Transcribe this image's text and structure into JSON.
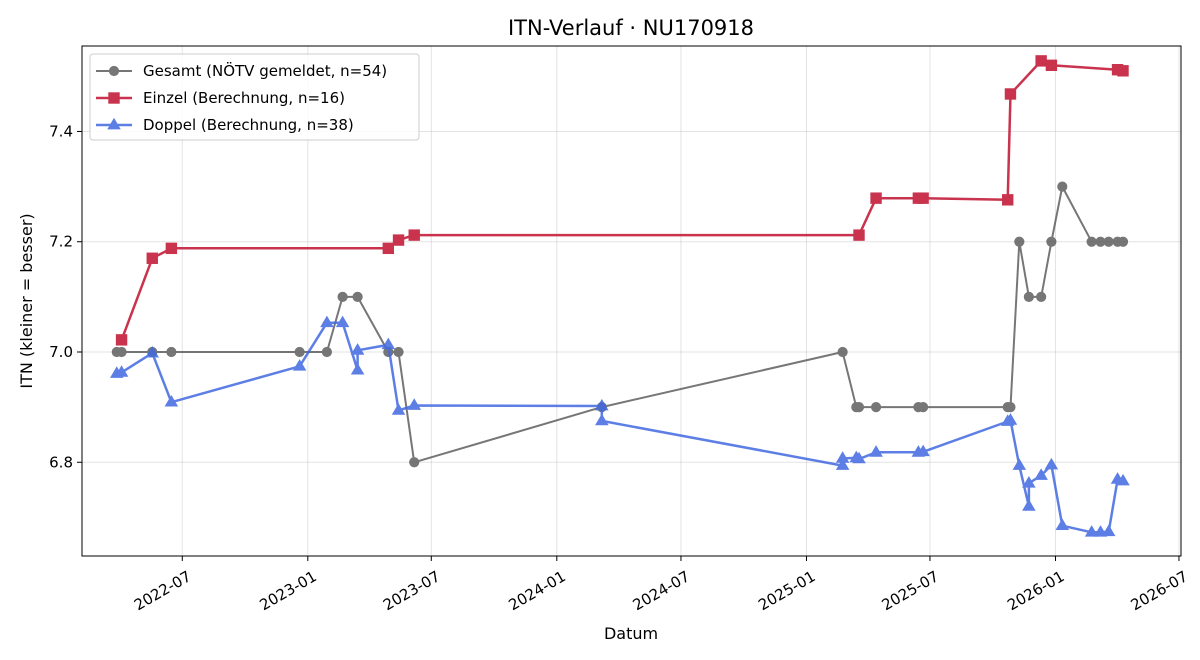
{
  "chart_data": {
    "type": "line",
    "title": "ITN-Verlauf · NU170918",
    "xlabel": "Datum",
    "ylabel": "ITN  (kleiner = besser)",
    "xlim": [
      "2022-02-04",
      "2026-07-04"
    ],
    "ylim": [
      6.63,
      7.555
    ],
    "x_ticks": [
      "2022-07",
      "2023-01",
      "2023-07",
      "2024-01",
      "2024-07",
      "2025-01",
      "2025-07",
      "2026-01",
      "2026-07"
    ],
    "y_ticks": [
      "6.8",
      "7.0",
      "7.2",
      "7.4"
    ],
    "grid": true,
    "legend_position": "top-left",
    "series": [
      {
        "name": "Gesamt (NÖTV gemeldet, n=54)",
        "color": "#555555",
        "marker": "circle",
        "points": [
          {
            "x": "2022-03-27",
            "y": 7.0
          },
          {
            "x": "2022-04-03",
            "y": 7.0
          },
          {
            "x": "2022-05-18",
            "y": 7.0
          },
          {
            "x": "2022-06-15",
            "y": 7.0
          },
          {
            "x": "2022-12-20",
            "y": 7.0
          },
          {
            "x": "2023-01-29",
            "y": 7.0
          },
          {
            "x": "2023-02-21",
            "y": 7.1
          },
          {
            "x": "2023-03-15",
            "y": 7.1
          },
          {
            "x": "2023-04-29",
            "y": 7.0
          },
          {
            "x": "2023-05-14",
            "y": 7.0
          },
          {
            "x": "2023-06-06",
            "y": 6.8
          },
          {
            "x": "2024-03-07",
            "y": 6.9
          },
          {
            "x": "2025-02-23",
            "y": 7.0
          },
          {
            "x": "2025-03-15",
            "y": 6.9
          },
          {
            "x": "2025-03-19",
            "y": 6.9
          },
          {
            "x": "2025-04-13",
            "y": 6.9
          },
          {
            "x": "2025-06-14",
            "y": 6.9
          },
          {
            "x": "2025-06-21",
            "y": 6.9
          },
          {
            "x": "2025-10-23",
            "y": 6.9
          },
          {
            "x": "2025-10-27",
            "y": 6.9
          },
          {
            "x": "2025-11-09",
            "y": 7.2
          },
          {
            "x": "2025-11-23",
            "y": 7.1
          },
          {
            "x": "2025-12-11",
            "y": 7.1
          },
          {
            "x": "2025-12-26",
            "y": 7.2
          },
          {
            "x": "2026-01-11",
            "y": 7.3
          },
          {
            "x": "2026-02-23",
            "y": 7.2
          },
          {
            "x": "2026-03-08",
            "y": 7.2
          },
          {
            "x": "2026-03-20",
            "y": 7.2
          },
          {
            "x": "2026-04-02",
            "y": 7.2
          },
          {
            "x": "2026-04-10",
            "y": 7.2
          }
        ]
      },
      {
        "name": "Einzel (Berechnung, n=16)",
        "color": "#c41e3a",
        "marker": "square",
        "points": [
          {
            "x": "2022-04-03",
            "y": 7.022
          },
          {
            "x": "2022-05-18",
            "y": 7.17
          },
          {
            "x": "2022-06-15",
            "y": 7.188
          },
          {
            "x": "2023-04-29",
            "y": 7.188
          },
          {
            "x": "2023-05-14",
            "y": 7.203
          },
          {
            "x": "2023-06-06",
            "y": 7.212
          },
          {
            "x": "2025-03-19",
            "y": 7.212
          },
          {
            "x": "2025-04-13",
            "y": 7.279
          },
          {
            "x": "2025-06-14",
            "y": 7.279
          },
          {
            "x": "2025-06-21",
            "y": 7.279
          },
          {
            "x": "2025-10-23",
            "y": 7.276
          },
          {
            "x": "2025-10-27",
            "y": 7.468
          },
          {
            "x": "2025-12-11",
            "y": 7.528
          },
          {
            "x": "2025-12-26",
            "y": 7.52
          },
          {
            "x": "2026-04-02",
            "y": 7.512
          },
          {
            "x": "2026-04-10",
            "y": 7.51
          }
        ]
      },
      {
        "name": "Doppel (Berechnung, n=38)",
        "color": "#4169e1",
        "marker": "triangle",
        "points": [
          {
            "x": "2022-03-27",
            "y": 6.961
          },
          {
            "x": "2022-04-03",
            "y": 6.963
          },
          {
            "x": "2022-05-18",
            "y": 6.998
          },
          {
            "x": "2022-06-15",
            "y": 6.909
          },
          {
            "x": "2022-12-20",
            "y": 6.974
          },
          {
            "x": "2023-01-29",
            "y": 7.053
          },
          {
            "x": "2023-02-21",
            "y": 7.053
          },
          {
            "x": "2023-03-15",
            "y": 6.967
          },
          {
            "x": "2023-03-15",
            "y": 7.003
          },
          {
            "x": "2023-04-29",
            "y": 7.013
          },
          {
            "x": "2023-05-14",
            "y": 6.894
          },
          {
            "x": "2023-06-06",
            "y": 6.903
          },
          {
            "x": "2024-03-07",
            "y": 6.902
          },
          {
            "x": "2024-03-07",
            "y": 6.875
          },
          {
            "x": "2025-02-23",
            "y": 6.794
          },
          {
            "x": "2025-02-23",
            "y": 6.807
          },
          {
            "x": "2025-03-15",
            "y": 6.808
          },
          {
            "x": "2025-03-19",
            "y": 6.806
          },
          {
            "x": "2025-04-13",
            "y": 6.818
          },
          {
            "x": "2025-06-14",
            "y": 6.818
          },
          {
            "x": "2025-06-21",
            "y": 6.819
          },
          {
            "x": "2025-10-23",
            "y": 6.874
          },
          {
            "x": "2025-10-27",
            "y": 6.876
          },
          {
            "x": "2025-11-09",
            "y": 6.794
          },
          {
            "x": "2025-11-23",
            "y": 6.72
          },
          {
            "x": "2025-11-23",
            "y": 6.762
          },
          {
            "x": "2025-12-11",
            "y": 6.776
          },
          {
            "x": "2025-12-26",
            "y": 6.795
          },
          {
            "x": "2026-01-11",
            "y": 6.685
          },
          {
            "x": "2026-02-23",
            "y": 6.673
          },
          {
            "x": "2026-03-08",
            "y": 6.673
          },
          {
            "x": "2026-03-20",
            "y": 6.674
          },
          {
            "x": "2026-04-02",
            "y": 6.769
          },
          {
            "x": "2026-04-10",
            "y": 6.766
          }
        ]
      }
    ]
  }
}
